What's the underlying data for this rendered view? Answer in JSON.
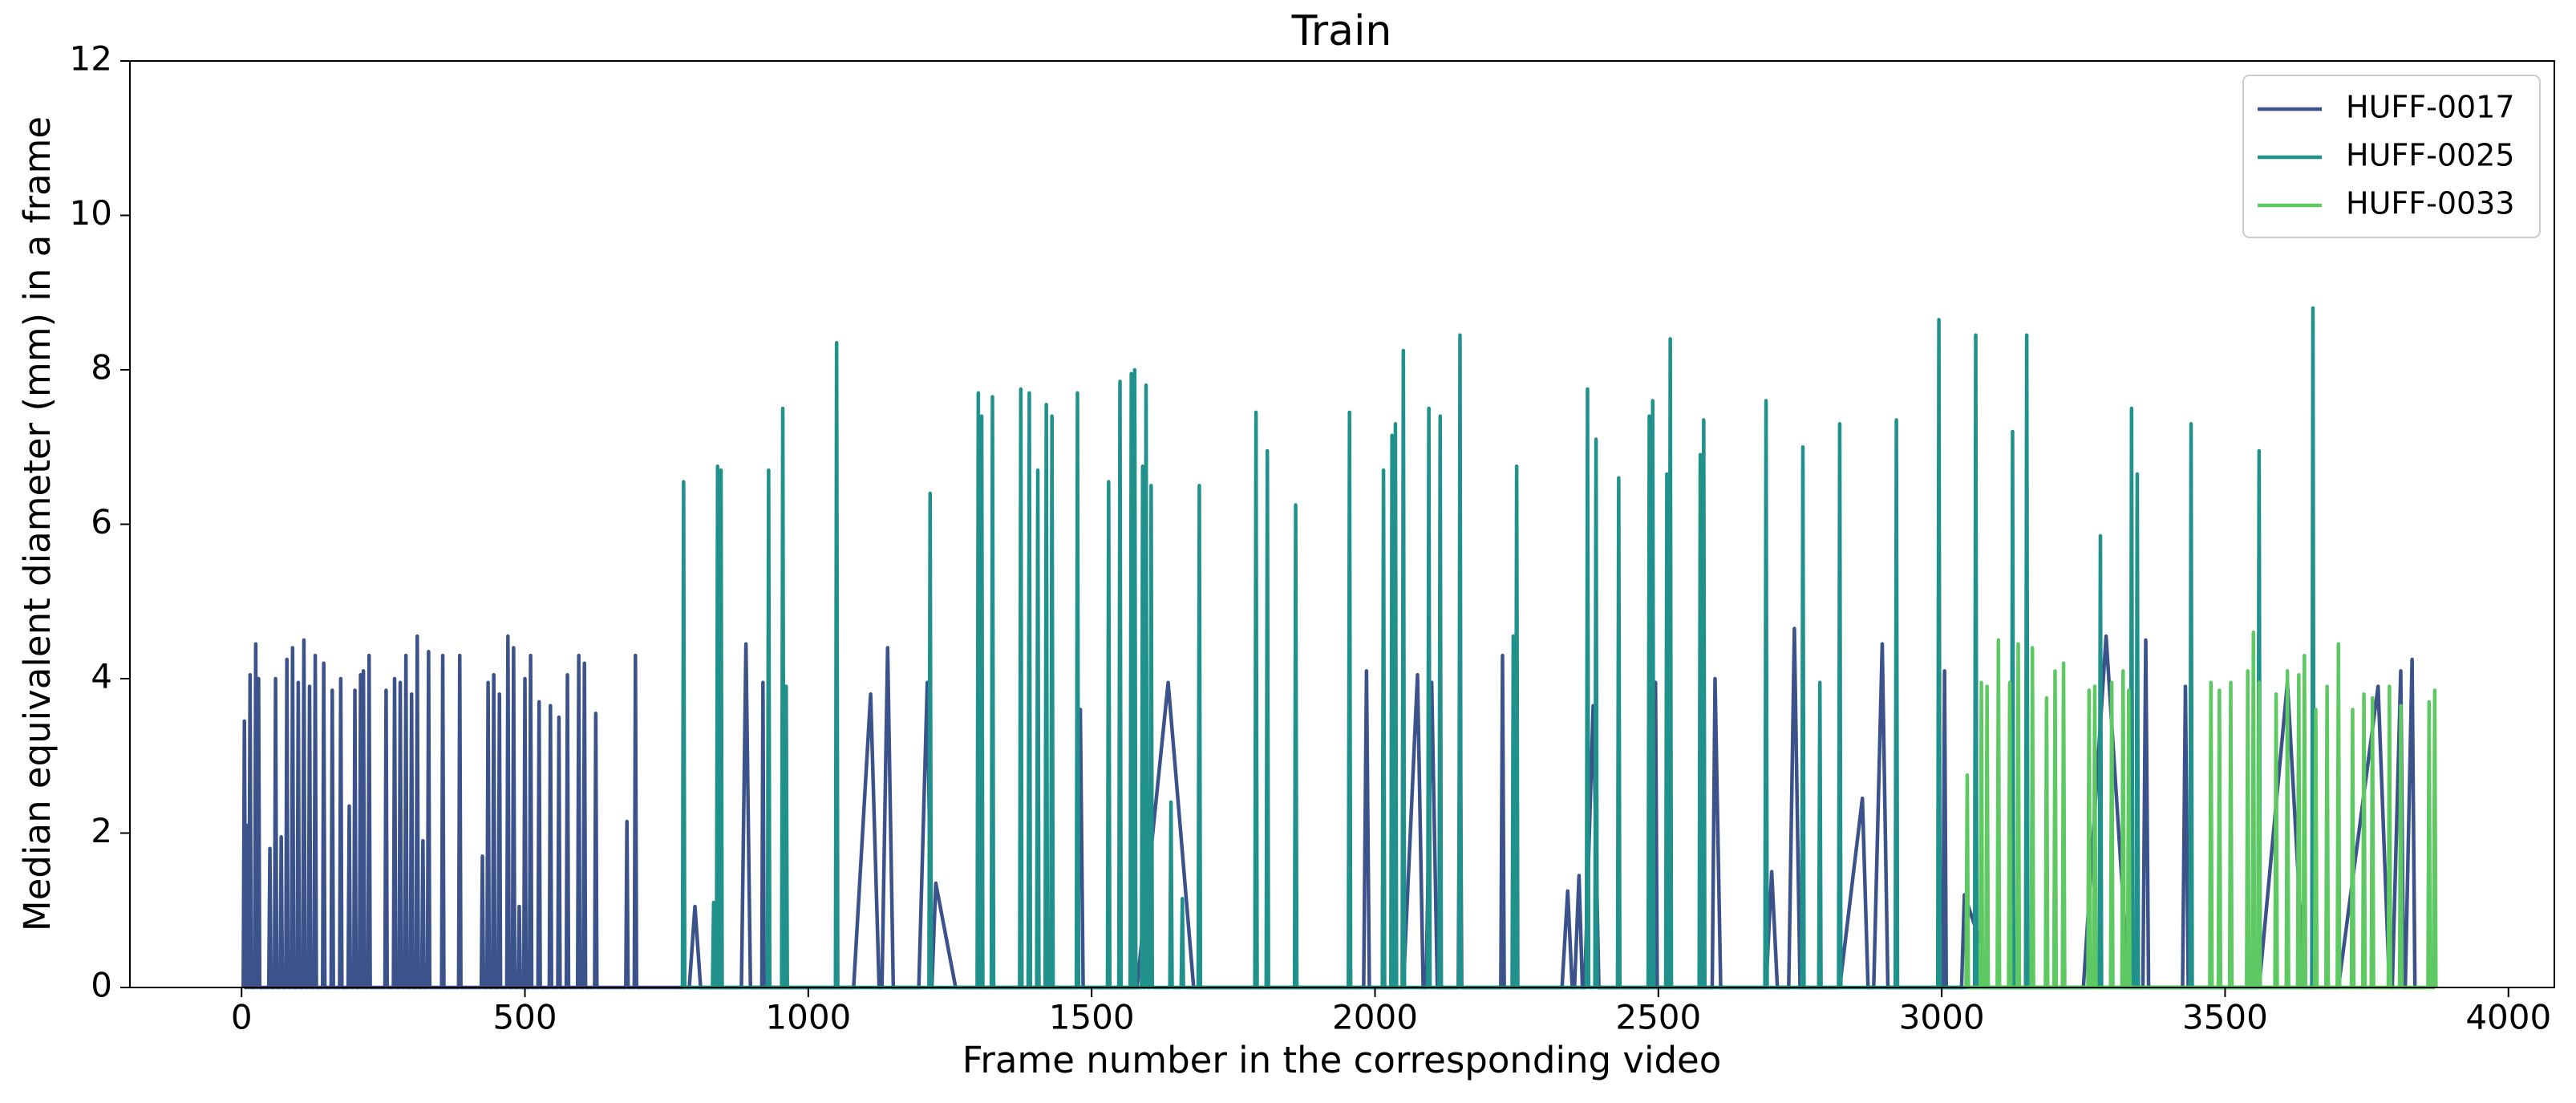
{
  "chart_data": {
    "type": "line",
    "title": "Train",
    "x_label": "Frame number in the corresponding video",
    "y_label": "Median equivalent diameter (mm) in a frame",
    "xlim": [
      -197,
      4081
    ],
    "ylim": [
      0,
      12
    ],
    "xticks": [
      0,
      500,
      1000,
      1500,
      2000,
      2500,
      3000,
      3500,
      4000
    ],
    "yticks": [
      0,
      2,
      4,
      6,
      8,
      10,
      12
    ],
    "legend": "upper right",
    "series": [
      {
        "name": "HUFF-0017",
        "color": "#3b528b",
        "x": [
          3,
          5,
          7,
          8,
          10,
          12,
          13,
          15,
          17,
          23,
          25,
          27,
          28,
          30,
          32,
          48,
          50,
          52,
          58,
          60,
          62,
          68,
          70,
          72,
          78,
          80,
          82,
          88,
          90,
          92,
          98,
          100,
          102,
          108,
          110,
          112,
          118,
          120,
          122,
          128,
          130,
          132,
          143,
          145,
          147,
          158,
          160,
          162,
          173,
          175,
          177,
          188,
          190,
          192,
          198,
          200,
          202,
          208,
          210,
          212,
          213,
          215,
          217,
          223,
          225,
          227,
          253,
          255,
          257,
          268,
          270,
          272,
          278,
          280,
          282,
          288,
          290,
          292,
          298,
          300,
          302,
          308,
          310,
          312,
          318,
          320,
          322,
          328,
          330,
          332,
          353,
          355,
          357,
          383,
          385,
          387,
          423,
          425,
          427,
          433,
          435,
          437,
          443,
          445,
          447,
          453,
          455,
          457,
          468,
          470,
          472,
          478,
          480,
          482,
          488,
          490,
          492,
          498,
          500,
          502,
          508,
          510,
          512,
          523,
          525,
          527,
          543,
          545,
          547,
          558,
          560,
          562,
          573,
          575,
          577,
          593,
          595,
          597,
          603,
          605,
          607,
          623,
          625,
          627,
          678,
          680,
          682,
          693,
          695,
          697,
          790,
          800,
          810,
          882,
          890,
          898,
          918,
          920,
          922,
          1080,
          1110,
          1125,
          1130,
          1140,
          1150,
          1195,
          1210,
          1218,
          1225,
          1260,
          1475,
          1480,
          1485,
          1580,
          1635,
          1680,
          1980,
          1985,
          1990,
          2050,
          2075,
          2085,
          2090,
          2100,
          2110,
          2147,
          2150,
          2153,
          2222,
          2225,
          2228,
          2330,
          2340,
          2348,
          2352,
          2360,
          2366,
          2370,
          2385,
          2395,
          2492,
          2495,
          2498,
          2595,
          2600,
          2610,
          2690,
          2700,
          2710,
          2730,
          2740,
          2750,
          2820,
          2860,
          2870,
          2880,
          2895,
          2905,
          3002,
          3005,
          3008,
          3035,
          3040,
          3070,
          3080,
          3250,
          3290,
          3330,
          3355,
          3360,
          3365,
          3425,
          3430,
          3435,
          3560,
          3610,
          3640,
          3700,
          3770,
          3790,
          3795,
          3810,
          3815,
          3818,
          3830,
          3835
        ],
        "values": [
          0,
          3.45,
          0,
          0,
          2.1,
          0,
          0,
          4.05,
          0,
          0,
          4.45,
          0,
          0,
          4.0,
          0,
          0,
          1.8,
          0,
          0,
          4.0,
          0,
          0,
          1.95,
          0,
          0,
          4.25,
          0,
          0,
          4.4,
          0,
          0,
          3.95,
          0,
          0,
          4.5,
          0,
          0,
          3.9,
          0,
          0,
          4.3,
          0,
          0,
          4.2,
          0,
          0,
          3.85,
          0,
          0,
          4.0,
          0,
          0,
          2.35,
          0,
          0,
          3.85,
          0,
          0,
          4.05,
          0,
          0,
          4.1,
          0,
          0,
          4.3,
          0,
          0,
          3.85,
          0,
          0,
          4.0,
          0,
          0,
          3.95,
          0,
          0,
          4.3,
          0,
          0,
          3.8,
          0,
          0,
          4.55,
          0,
          0,
          1.9,
          0,
          0,
          4.35,
          0,
          0,
          4.3,
          0,
          0,
          4.3,
          0,
          0,
          1.7,
          0,
          0,
          3.95,
          0,
          0,
          4.05,
          0,
          0,
          3.8,
          0,
          0,
          4.55,
          0,
          0,
          4.4,
          0,
          0,
          1.05,
          0,
          0,
          4.0,
          0,
          0,
          4.3,
          0,
          0,
          3.7,
          0,
          0,
          3.65,
          0,
          0,
          3.5,
          0,
          0,
          4.05,
          0,
          0,
          4.3,
          0,
          0,
          4.2,
          0,
          0,
          3.55,
          0,
          0,
          2.15,
          0,
          0,
          4.3,
          0,
          0,
          1.05,
          0,
          0,
          4.45,
          0,
          0,
          3.95,
          0,
          0,
          3.8,
          0,
          0,
          4.4,
          0,
          0,
          3.95,
          0,
          1.35,
          0,
          0,
          3.6,
          0,
          0,
          3.95,
          0,
          0,
          4.1,
          0,
          0,
          4.05,
          0,
          0,
          3.95,
          0,
          0,
          4.25,
          0,
          0,
          4.3,
          0,
          0,
          1.25,
          0,
          0,
          1.45,
          0,
          0,
          3.65,
          0,
          0,
          3.95,
          0,
          0,
          4.0,
          0,
          0,
          1.5,
          0,
          0,
          4.65,
          0,
          0,
          2.45,
          0,
          0,
          4.45,
          0,
          0,
          4.1,
          0,
          0,
          1.2,
          0.55,
          0,
          0,
          4.55,
          0,
          0,
          4.5,
          0,
          0,
          3.9,
          0,
          0,
          3.95,
          0,
          0,
          3.9,
          0,
          0,
          4.1,
          0,
          0,
          4.25,
          0
        ]
      },
      {
        "name": "HUFF-0025",
        "color": "#21918c",
        "x": [
          778,
          780,
          782,
          831,
          833,
          835,
          838,
          840,
          842,
          844,
          846,
          848,
          928,
          930,
          932,
          953,
          955,
          957,
          959,
          961,
          963,
          1048,
          1050,
          1052,
          1213,
          1215,
          1217,
          1298,
          1300,
          1302,
          1304,
          1306,
          1308,
          1323,
          1325,
          1327,
          1373,
          1375,
          1377,
          1388,
          1390,
          1392,
          1403,
          1405,
          1407,
          1418,
          1420,
          1422,
          1428,
          1430,
          1432,
          1473,
          1475,
          1477,
          1528,
          1530,
          1532,
          1548,
          1550,
          1552,
          1568,
          1570,
          1572,
          1574,
          1576,
          1578,
          1588,
          1590,
          1592,
          1594,
          1596,
          1598,
          1603,
          1605,
          1607,
          1638,
          1640,
          1642,
          1658,
          1660,
          1662,
          1688,
          1690,
          1692,
          1788,
          1790,
          1792,
          1808,
          1810,
          1812,
          1858,
          1860,
          1862,
          1953,
          1955,
          1957,
          2013,
          2015,
          2017,
          2028,
          2030,
          2032,
          2034,
          2036,
          2038,
          2048,
          2050,
          2052,
          2093,
          2095,
          2097,
          2113,
          2115,
          2117,
          2148,
          2150,
          2152,
          2242,
          2244,
          2246,
          2248,
          2250,
          2252,
          2373,
          2375,
          2377,
          2388,
          2390,
          2392,
          2428,
          2430,
          2432,
          2482,
          2484,
          2486,
          2488,
          2490,
          2492,
          2513,
          2515,
          2517,
          2519,
          2521,
          2523,
          2572,
          2574,
          2576,
          2578,
          2580,
          2582,
          2688,
          2690,
          2692,
          2753,
          2755,
          2757,
          2783,
          2785,
          2787,
          2818,
          2820,
          2822,
          2918,
          2920,
          2922,
          2993,
          2995,
          2997,
          3058,
          3060,
          3062,
          3123,
          3125,
          3127,
          3148,
          3150,
          3152,
          3278,
          3280,
          3282,
          3333,
          3335,
          3337,
          3343,
          3345,
          3347,
          3438,
          3440,
          3442,
          3558,
          3560,
          3562,
          3653,
          3655,
          3657
        ],
        "values": [
          0,
          6.55,
          0,
          0,
          1.1,
          0,
          0,
          6.75,
          0,
          0,
          6.7,
          0,
          0,
          6.7,
          0,
          0,
          7.5,
          0,
          0,
          3.9,
          0,
          0,
          8.35,
          0,
          0,
          6.4,
          0,
          0,
          7.7,
          0,
          0,
          7.4,
          0,
          0,
          7.65,
          0,
          0,
          7.75,
          0,
          0,
          7.7,
          0,
          0,
          6.7,
          0,
          0,
          7.55,
          0,
          0,
          7.4,
          0,
          0,
          7.7,
          0,
          0,
          6.55,
          0,
          0,
          7.85,
          0,
          0,
          7.95,
          0,
          0,
          8.0,
          0,
          0,
          6.75,
          0,
          0,
          7.8,
          0,
          0,
          6.5,
          0,
          0,
          2.4,
          0,
          0,
          1.15,
          0,
          0,
          6.5,
          0,
          0,
          7.45,
          0,
          0,
          6.95,
          0,
          0,
          6.25,
          0,
          0,
          7.45,
          0,
          0,
          6.7,
          0,
          0,
          7.15,
          0,
          0,
          7.3,
          0,
          0,
          8.25,
          0,
          0,
          7.5,
          0,
          0,
          7.4,
          0,
          0,
          8.45,
          0,
          0,
          4.55,
          0,
          0,
          6.75,
          0,
          0,
          7.75,
          0,
          0,
          7.1,
          0,
          0,
          6.6,
          0,
          0,
          7.4,
          0,
          0,
          7.6,
          0,
          0,
          6.65,
          0,
          0,
          8.4,
          0,
          0,
          6.9,
          0,
          0,
          7.35,
          0,
          0,
          7.6,
          0,
          0,
          7.0,
          0,
          0,
          3.95,
          0,
          0,
          7.3,
          0,
          0,
          7.35,
          0,
          0,
          8.65,
          0,
          0,
          8.45,
          0,
          0,
          7.2,
          0,
          0,
          8.45,
          0,
          0,
          5.85,
          0,
          0,
          7.5,
          0,
          0,
          6.65,
          0,
          0,
          7.3,
          0,
          0,
          6.95,
          0,
          0,
          8.8,
          0
        ]
      },
      {
        "name": "HUFF-0033",
        "color": "#5ec962",
        "x": [
          3043,
          3045,
          3047,
          3068,
          3070,
          3072,
          3078,
          3080,
          3082,
          3098,
          3100,
          3102,
          3118,
          3120,
          3122,
          3133,
          3135,
          3137,
          3158,
          3160,
          3162,
          3183,
          3185,
          3187,
          3198,
          3200,
          3202,
          3213,
          3215,
          3217,
          3258,
          3260,
          3262,
          3268,
          3270,
          3272,
          3298,
          3300,
          3302,
          3318,
          3320,
          3322,
          3328,
          3330,
          3332,
          3473,
          3475,
          3477,
          3488,
          3490,
          3492,
          3508,
          3510,
          3512,
          3538,
          3540,
          3542,
          3548,
          3550,
          3552,
          3558,
          3560,
          3562,
          3588,
          3590,
          3592,
          3608,
          3610,
          3612,
          3628,
          3630,
          3632,
          3638,
          3640,
          3642,
          3658,
          3660,
          3662,
          3678,
          3680,
          3682,
          3698,
          3700,
          3702,
          3723,
          3725,
          3727,
          3743,
          3745,
          3747,
          3758,
          3760,
          3762,
          3788,
          3790,
          3792,
          3808,
          3810,
          3812,
          3858,
          3860,
          3862,
          3868,
          3870,
          3872
        ],
        "values": [
          0,
          2.75,
          0,
          0,
          3.95,
          0,
          0,
          3.9,
          0,
          0,
          4.5,
          0,
          0,
          3.95,
          0,
          0,
          4.45,
          0,
          0,
          4.4,
          0,
          0,
          3.75,
          0,
          0,
          4.1,
          0,
          0,
          4.2,
          0,
          0,
          3.85,
          0,
          0,
          3.9,
          0,
          0,
          3.95,
          0,
          0,
          4.1,
          0,
          0,
          3.85,
          0,
          0,
          3.95,
          0,
          0,
          3.85,
          0,
          0,
          3.95,
          0,
          0,
          4.1,
          0,
          0,
          4.6,
          0,
          0,
          3.95,
          0,
          0,
          3.8,
          0,
          0,
          4.1,
          0,
          0,
          4.05,
          0,
          0,
          4.3,
          0,
          0,
          3.6,
          0,
          0,
          3.9,
          0,
          0,
          4.45,
          0,
          0,
          3.6,
          0,
          0,
          3.8,
          0,
          0,
          3.75,
          0,
          0,
          3.9,
          0,
          0,
          3.65,
          0,
          0,
          3.7,
          0,
          0,
          3.85,
          0
        ]
      }
    ]
  }
}
